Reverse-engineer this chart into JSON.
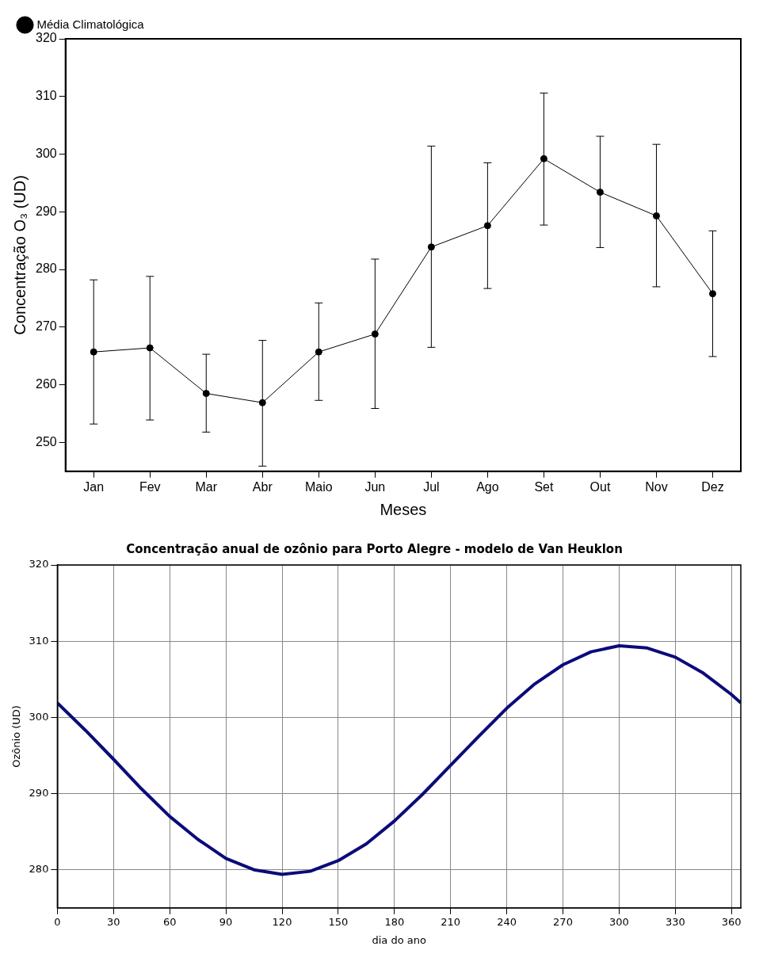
{
  "chart_data": [
    {
      "type": "line",
      "xlabel": "Meses",
      "ylabel": "Concentração O₃ (UD)",
      "categories": [
        "Jan",
        "Fev",
        "Mar",
        "Abr",
        "Maio",
        "Jun",
        "Jul",
        "Ago",
        "Set",
        "Out",
        "Nov",
        "Dez"
      ],
      "series": [
        {
          "name": "Média Climatológica",
          "color": "#000000",
          "values": [
            265.7,
            266.4,
            258.5,
            256.9,
            265.7,
            268.8,
            283.9,
            287.6,
            299.2,
            293.4,
            289.3,
            275.8
          ],
          "errors": [
            [
              253.2,
              278.2
            ],
            [
              253.9,
              278.8
            ],
            [
              251.8,
              265.3
            ],
            [
              245.9,
              267.7
            ],
            [
              257.3,
              274.2
            ],
            [
              255.9,
              281.8
            ],
            [
              266.5,
              301.4
            ],
            [
              276.7,
              298.5
            ],
            [
              287.7,
              310.6
            ],
            [
              283.8,
              303.1
            ],
            [
              277.0,
              301.7
            ],
            [
              264.9,
              286.7
            ]
          ]
        }
      ],
      "ylim": [
        245,
        320
      ],
      "yticks": [
        250,
        260,
        270,
        280,
        290,
        300,
        310,
        320
      ],
      "grid": false,
      "legend": "top left",
      "marker": "circle",
      "line_style": "solid"
    },
    {
      "type": "line",
      "title": "Concentração anual de ozônio para Porto Alegre - modelo de Van Heuklon",
      "xlabel": "dia do ano",
      "ylabel": "Ozônio (UD)",
      "x": [
        0,
        15,
        30,
        45,
        60,
        75,
        90,
        105,
        120,
        135,
        150,
        165,
        180,
        195,
        210,
        225,
        240,
        255,
        270,
        285,
        300,
        315,
        330,
        345,
        360,
        365
      ],
      "series": [
        {
          "color": "#0b0b7a",
          "values": [
            301.9,
            298.3,
            294.5,
            290.6,
            287.0,
            284.0,
            281.5,
            280.0,
            279.4,
            279.8,
            281.2,
            283.4,
            286.4,
            289.9,
            293.7,
            297.5,
            301.2,
            304.4,
            306.9,
            308.6,
            309.4,
            309.1,
            307.9,
            305.8,
            303.0,
            301.9
          ]
        }
      ],
      "xlim": [
        0,
        365
      ],
      "xticks": [
        0,
        30,
        60,
        90,
        120,
        150,
        180,
        210,
        240,
        270,
        300,
        330,
        360
      ],
      "ylim": [
        275,
        320
      ],
      "yticks": [
        280,
        290,
        300,
        310,
        320
      ],
      "grid": true,
      "legend": false,
      "marker": "none",
      "line_style": "solid"
    }
  ]
}
